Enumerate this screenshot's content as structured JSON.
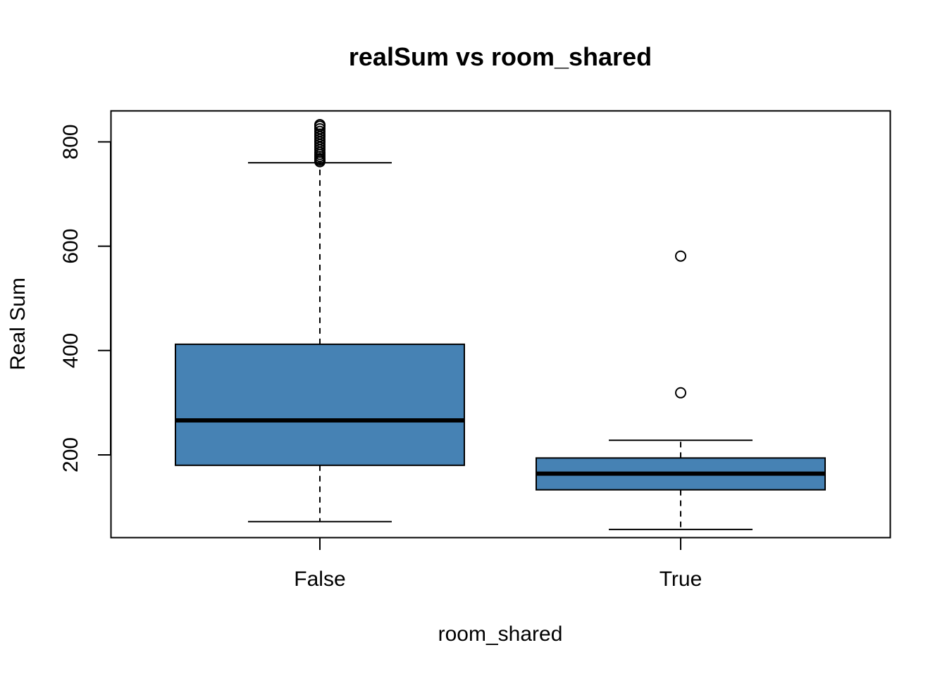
{
  "chart_data": {
    "type": "box",
    "title": "realSum vs room_shared",
    "xlabel": "room_shared",
    "ylabel": "Real Sum",
    "categories": [
      "False",
      "True"
    ],
    "ylim": [
      42,
      860
    ],
    "yticks": [
      200,
      400,
      600,
      800
    ],
    "ytick_labels": [
      "200",
      "400",
      "600",
      "800"
    ],
    "grid": false,
    "box_color": "#4682b4",
    "boxes": [
      {
        "category": "False",
        "whisker_low": 72,
        "q1": 180,
        "median": 266,
        "q3": 412,
        "whisker_high": 760,
        "outliers": [
          762,
          765,
          768,
          772,
          776,
          780,
          785,
          790,
          795,
          800,
          805,
          810,
          815,
          820,
          825,
          830,
          833
        ]
      },
      {
        "category": "True",
        "whisker_low": 57,
        "q1": 133,
        "median": 164,
        "q3": 194,
        "whisker_high": 228,
        "outliers": [
          319,
          581
        ]
      }
    ]
  }
}
